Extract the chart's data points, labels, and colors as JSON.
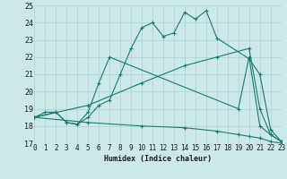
{
  "xlabel": "Humidex (Indice chaleur)",
  "bg_color": "#cce8e8",
  "line_color": "#1a7a6e",
  "grid_color": "#b0d4d4",
  "ylim": [
    17,
    25
  ],
  "xlim": [
    0,
    23
  ],
  "yticks": [
    17,
    18,
    19,
    20,
    21,
    22,
    23,
    24,
    25
  ],
  "xticks": [
    0,
    1,
    2,
    3,
    4,
    5,
    6,
    7,
    8,
    9,
    10,
    11,
    12,
    13,
    14,
    15,
    16,
    17,
    18,
    19,
    20,
    21,
    22,
    23
  ],
  "lines": [
    {
      "x": [
        0,
        1,
        2,
        3,
        4,
        5,
        6,
        7,
        8,
        9,
        10,
        11,
        12,
        13,
        14,
        15,
        16,
        17,
        20,
        21,
        22,
        23
      ],
      "y": [
        18.5,
        18.8,
        18.8,
        18.2,
        18.1,
        18.5,
        19.2,
        19.5,
        21.0,
        22.5,
        23.7,
        24.0,
        23.2,
        23.4,
        24.6,
        24.2,
        24.7,
        23.1,
        21.9,
        21.0,
        17.8,
        17.1
      ]
    },
    {
      "x": [
        0,
        5,
        10,
        14,
        17,
        20,
        21,
        22,
        23
      ],
      "y": [
        18.5,
        19.2,
        20.5,
        21.5,
        22.0,
        22.5,
        19.0,
        17.5,
        17.1
      ]
    },
    {
      "x": [
        0,
        2,
        3,
        4,
        5,
        6,
        7,
        19,
        20,
        21,
        22,
        23
      ],
      "y": [
        18.5,
        18.8,
        18.2,
        18.1,
        18.8,
        20.5,
        22.0,
        19.0,
        22.0,
        18.0,
        17.5,
        17.1
      ]
    },
    {
      "x": [
        0,
        5,
        10,
        14,
        17,
        19,
        20,
        21,
        22,
        23
      ],
      "y": [
        18.5,
        18.2,
        18.0,
        17.9,
        17.7,
        17.5,
        17.4,
        17.3,
        17.1,
        17.0
      ]
    }
  ]
}
